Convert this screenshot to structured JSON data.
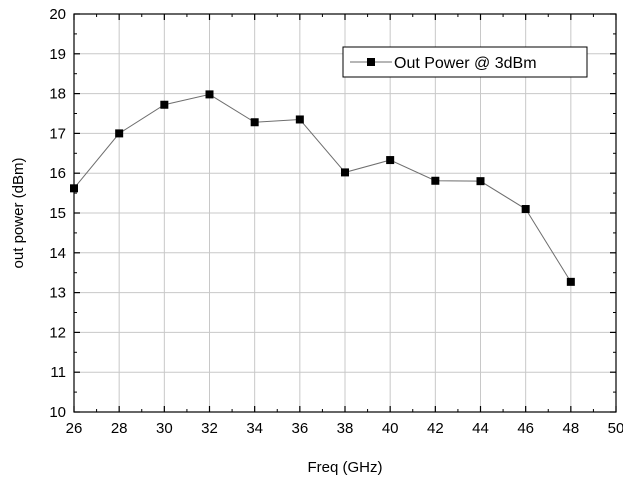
{
  "chart_data": {
    "type": "line",
    "title": "",
    "xlabel": "Freq (GHz)",
    "ylabel": "out power (dBm)",
    "xlim": [
      26,
      50
    ],
    "ylim": [
      10,
      20
    ],
    "x_ticks": [
      26,
      28,
      30,
      32,
      34,
      36,
      38,
      40,
      42,
      44,
      46,
      48,
      50
    ],
    "y_ticks": [
      10,
      11,
      12,
      13,
      14,
      15,
      16,
      17,
      18,
      19,
      20
    ],
    "x_tick_labels": [
      "26",
      "28",
      "30",
      "32",
      "34",
      "36",
      "38",
      "40",
      "42",
      "44",
      "46",
      "48",
      "50"
    ],
    "y_tick_labels": [
      "10",
      "11",
      "12",
      "13",
      "14",
      "15",
      "16",
      "17",
      "18",
      "19",
      "20"
    ],
    "grid": true,
    "legend_position": "top-right",
    "series": [
      {
        "name": "Out Power @ 3dBm",
        "marker": "square",
        "color": "#000000",
        "x": [
          26,
          28,
          30,
          32,
          34,
          36,
          38,
          40,
          42,
          44,
          46,
          48
        ],
        "y": [
          15.62,
          17.0,
          17.72,
          17.98,
          17.28,
          17.35,
          16.02,
          16.33,
          15.81,
          15.8,
          15.1,
          13.27
        ]
      }
    ],
    "colors": {
      "grid": "#c8c8c8",
      "axis": "#000000",
      "line": "#6e6e6e",
      "marker": "#000000"
    }
  }
}
